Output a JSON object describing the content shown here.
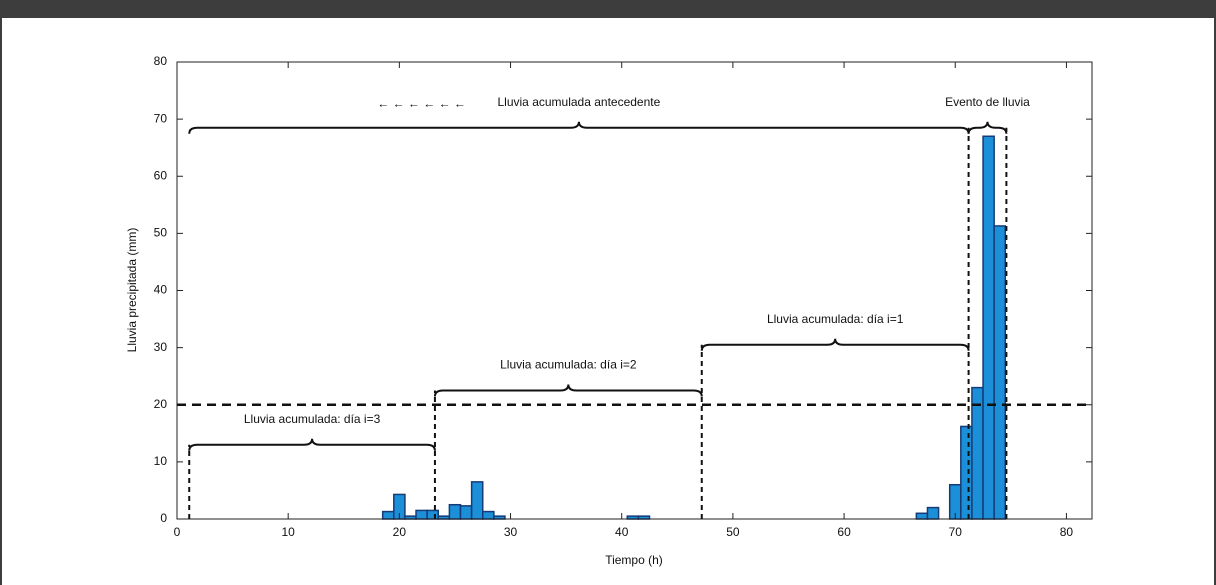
{
  "chart_data": {
    "type": "bar",
    "x_label": "Tiempo (h)",
    "y_label": "Lluvia precipitada (mm)",
    "x": [
      0,
      1,
      2,
      3,
      4,
      5,
      6,
      7,
      8,
      9,
      10,
      11,
      12,
      13,
      14,
      15,
      16,
      17,
      18,
      19,
      20,
      21,
      22,
      23,
      24,
      25,
      26,
      27,
      28,
      29,
      30,
      31,
      32,
      33,
      34,
      35,
      36,
      37,
      38,
      39,
      40,
      41,
      42,
      43,
      44,
      45,
      46,
      47,
      48,
      49,
      50,
      51,
      52,
      53,
      54,
      55,
      56,
      57,
      58,
      59,
      60,
      61,
      62,
      63,
      64,
      65,
      66,
      67,
      68,
      69,
      70,
      71,
      72,
      73,
      74,
      75,
      76,
      77,
      78,
      79,
      80,
      81,
      82
    ],
    "values": [
      0,
      0,
      0,
      0,
      0,
      0,
      0,
      0,
      0,
      0,
      0,
      0,
      0,
      0,
      0,
      0,
      0,
      0,
      0,
      1.3,
      4.3,
      0.5,
      1.5,
      1.5,
      0.5,
      2.5,
      2.3,
      6.5,
      1.3,
      0.5,
      0,
      0,
      0,
      0,
      0,
      0,
      0,
      0,
      0,
      0,
      0,
      0.5,
      0.5,
      0,
      0,
      0,
      0,
      0,
      0,
      0,
      0,
      0,
      0,
      0,
      0,
      0,
      0,
      0,
      0,
      0,
      0,
      0,
      0,
      0,
      0,
      0,
      0,
      1,
      2,
      0,
      6,
      16.2,
      23,
      67,
      51.3,
      0,
      0,
      0,
      0,
      0,
      0,
      0,
      0
    ],
    "color": "#1b8fd8",
    "xlim": [
      0,
      82.3
    ],
    "ylim": [
      0,
      80
    ],
    "xticks": [
      0,
      10,
      20,
      30,
      40,
      50,
      60,
      70,
      80
    ],
    "yticks": [
      0,
      10,
      20,
      30,
      40,
      50,
      60,
      70,
      80
    ],
    "threshold": 20,
    "dividers": [
      {
        "x": 1.1,
        "y": 13
      },
      {
        "x": 23.2,
        "y": 22.5
      },
      {
        "x": 47.2,
        "y": 30.5
      },
      {
        "x": 71.2,
        "y": 68.5
      },
      {
        "x": 74.6,
        "y": 68.5
      }
    ],
    "braces": [
      {
        "label": "Lluvia acumulada: día i=3",
        "x": [
          1.1,
          23.2
        ],
        "y": 13
      },
      {
        "label": "Lluvia acumulada: día i=2",
        "x": [
          23.2,
          47.2
        ],
        "y": 22.5
      },
      {
        "label": "Lluvia acumulada: día i=1",
        "x": [
          47.2,
          71.2
        ],
        "y": 30.5
      },
      {
        "label": "Lluvia acumulada antecedente",
        "x": [
          1.1,
          71.2
        ],
        "y": 68.5
      },
      {
        "label": "Evento de lluvia",
        "x": [
          71.2,
          74.6
        ],
        "y": 68.5
      }
    ],
    "arrows": {
      "text": "← ← ← ← ← ←",
      "x": 22,
      "y": 72.6
    }
  }
}
